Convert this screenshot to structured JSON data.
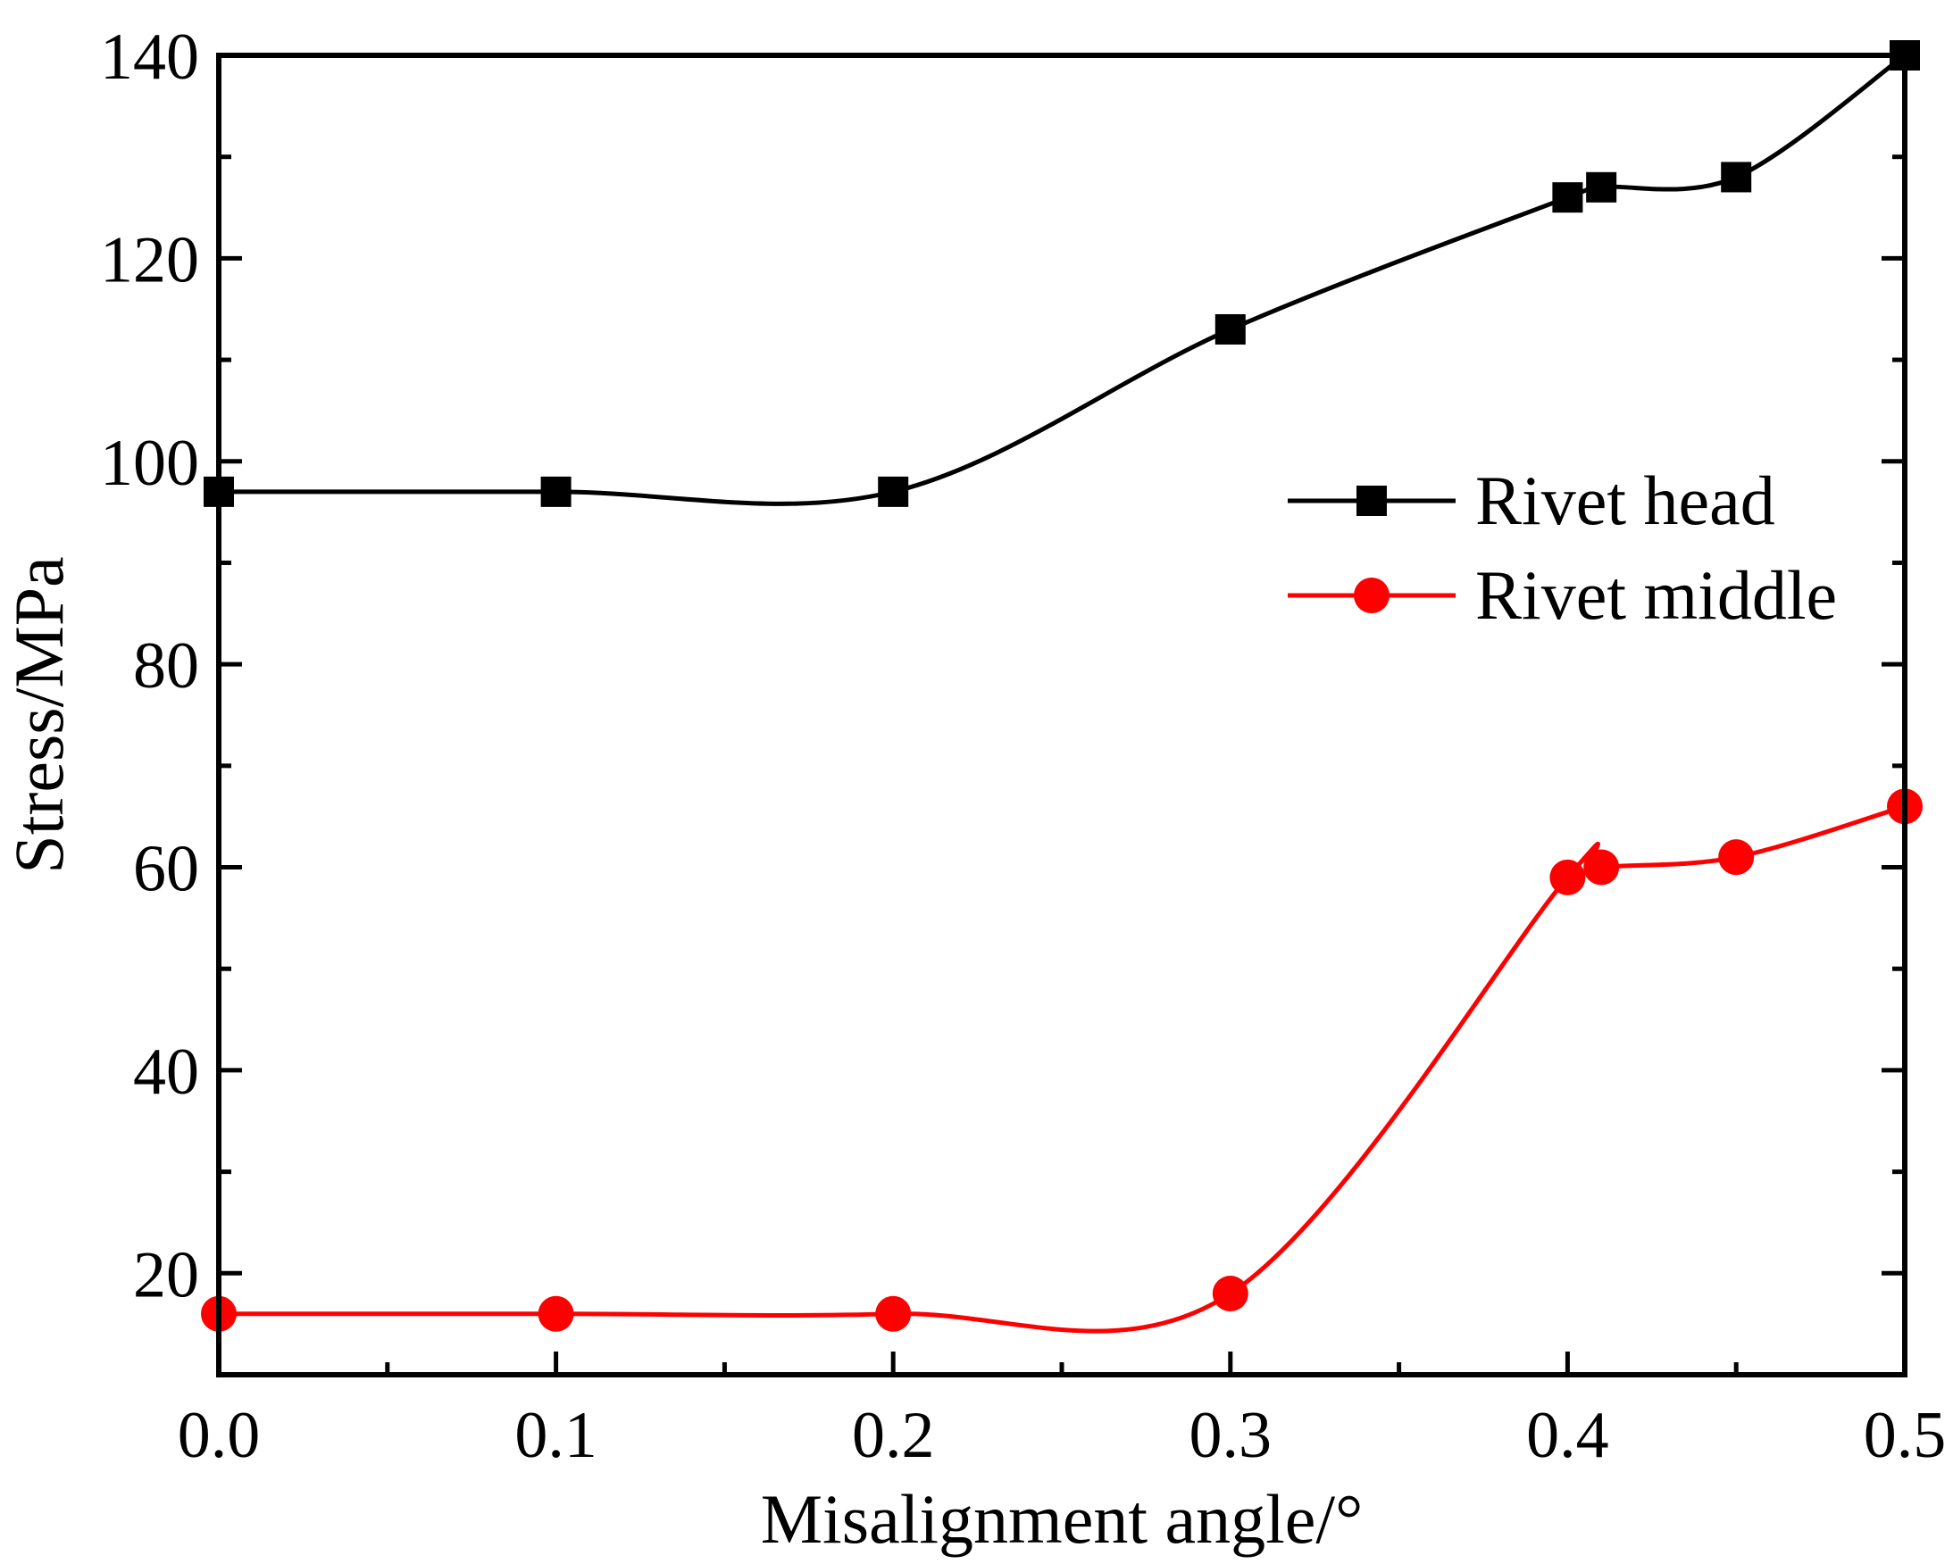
{
  "chart_data": {
    "type": "line",
    "title": "",
    "xlabel": "Misalignment angle/°",
    "ylabel": "Stress/MPa",
    "xlim": [
      0,
      0.5
    ],
    "ylim": [
      10,
      140
    ],
    "x_ticks": [
      0.0,
      0.1,
      0.2,
      0.3,
      0.4,
      0.5
    ],
    "x_tick_labels": [
      "0.0",
      "0.1",
      "0.2",
      "0.3",
      "0.4",
      "0.5"
    ],
    "x_minor_ticks": [
      0.05,
      0.15,
      0.25,
      0.35,
      0.45
    ],
    "y_ticks": [
      20,
      40,
      60,
      80,
      100,
      120,
      140
    ],
    "y_tick_labels": [
      "20",
      "40",
      "60",
      "80",
      "100",
      "120",
      "140"
    ],
    "y_minor_ticks": [
      30,
      50,
      70,
      90,
      110,
      130
    ],
    "grid": false,
    "legend_position": "right-middle",
    "x": [
      0.0,
      0.1,
      0.2,
      0.3,
      0.4,
      0.41,
      0.45,
      0.5
    ],
    "series": [
      {
        "name": "Rivet head",
        "color": "#000000",
        "marker": "square",
        "values": [
          97,
          97,
          97,
          113,
          126,
          127,
          128,
          140
        ]
      },
      {
        "name": "Rivet middle",
        "color": "#ff0000",
        "marker": "circle",
        "values": [
          16,
          16,
          16,
          18,
          59,
          60,
          61,
          66
        ]
      }
    ]
  }
}
